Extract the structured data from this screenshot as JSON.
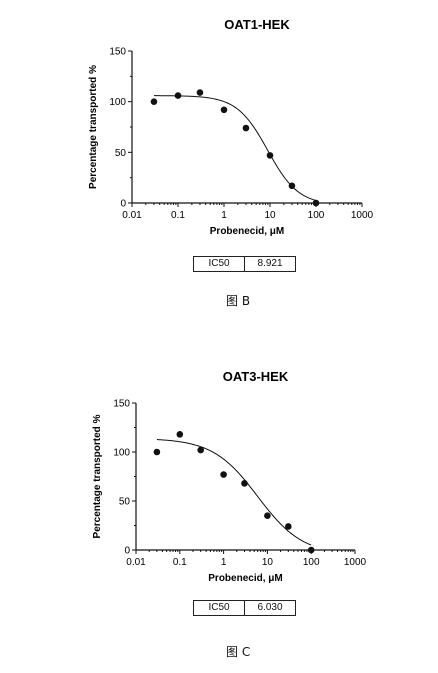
{
  "chart_data": [
    {
      "type": "scatter",
      "title": "OAT1-HEK",
      "xlabel": "Probenecid, μM",
      "ylabel": "Percentage transported %",
      "xscale": "log",
      "xlim": [
        0.01,
        1000
      ],
      "ylim": [
        0,
        150
      ],
      "xticks": [
        "0.01",
        "0.1",
        "1",
        "10",
        "100",
        "1000"
      ],
      "yticks": [
        "0",
        "50",
        "100",
        "150"
      ],
      "points": {
        "x": [
          0.03,
          0.1,
          0.3,
          1,
          3,
          10,
          30,
          100
        ],
        "y": [
          100,
          106,
          109,
          92,
          74,
          47,
          17,
          0
        ]
      },
      "fit": {
        "top": 106,
        "bottom": -2,
        "ic50": 8.921,
        "hill": 1.3
      },
      "ic50_label": "IC50",
      "ic50_value": "8.921",
      "caption": "图 B",
      "grid": false
    },
    {
      "type": "scatter",
      "title": "OAT3-HEK",
      "xlabel": "Probenecid, μM",
      "ylabel": "Percentage transported %",
      "xscale": "log",
      "xlim": [
        0.01,
        1000
      ],
      "ylim": [
        0,
        150
      ],
      "xticks": [
        "0.01",
        "0.1",
        "1",
        "10",
        "100",
        "1000"
      ],
      "yticks": [
        "0",
        "50",
        "100",
        "150"
      ],
      "points": {
        "x": [
          0.03,
          0.1,
          0.3,
          1,
          3,
          10,
          30,
          100
        ],
        "y": [
          100,
          118,
          102,
          77,
          68,
          35,
          24,
          0
        ]
      },
      "fit": {
        "top": 114,
        "bottom": -5,
        "ic50": 6.03,
        "hill": 0.85
      },
      "ic50_label": "IC50",
      "ic50_value": "6.030",
      "caption": "图 C",
      "grid": false
    }
  ]
}
